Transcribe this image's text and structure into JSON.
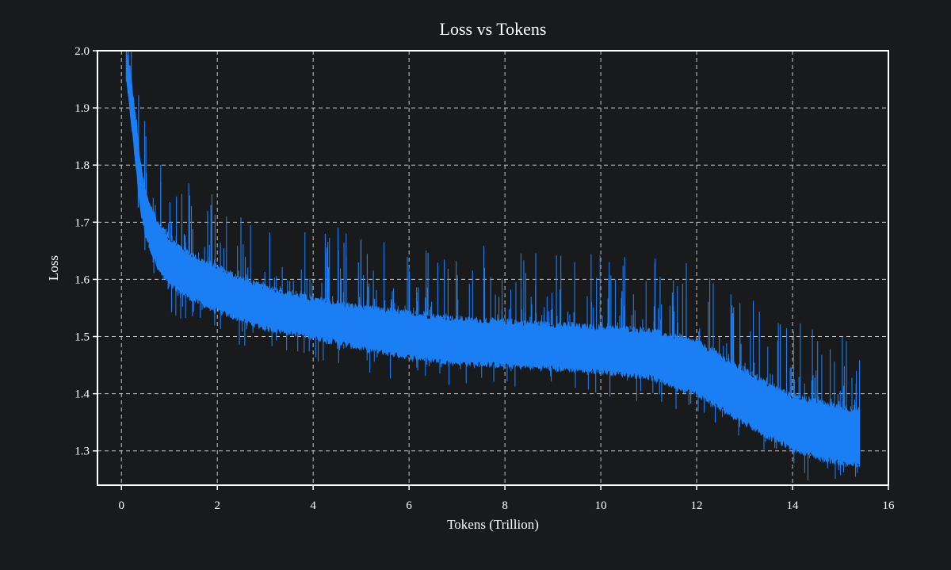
{
  "chart_data": {
    "type": "area",
    "title": "Loss vs Tokens",
    "xlabel": "Tokens (Trillion)",
    "ylabel": "Loss",
    "xlim": [
      -0.5,
      16
    ],
    "ylim": [
      1.24,
      2.0
    ],
    "xticks": [
      0,
      2,
      4,
      6,
      8,
      10,
      12,
      14,
      16
    ],
    "yticks": [
      1.3,
      1.4,
      1.5,
      1.6,
      1.7,
      1.8,
      1.9,
      2.0
    ],
    "xtick_labels": [
      "0",
      "2",
      "4",
      "6",
      "8",
      "10",
      "12",
      "14",
      "16"
    ],
    "ytick_labels": [
      "1.3",
      "1.4",
      "1.5",
      "1.6",
      "1.7",
      "1.8",
      "1.9",
      "2.0"
    ],
    "grid": true,
    "series": [
      {
        "name": "Loss",
        "color": "#1a7ff5",
        "x": [
          0.1,
          0.2,
          0.3,
          0.4,
          0.5,
          0.75,
          1.0,
          1.5,
          2.0,
          2.5,
          3.0,
          4.0,
          5.0,
          6.0,
          7.0,
          8.0,
          9.0,
          10.0,
          10.5,
          11.0,
          11.5,
          12.0,
          12.5,
          13.0,
          13.5,
          14.0,
          14.5,
          15.0,
          15.4
        ],
        "upper": [
          2.0,
          1.95,
          1.88,
          1.8,
          1.75,
          1.7,
          1.67,
          1.64,
          1.62,
          1.6,
          1.585,
          1.565,
          1.55,
          1.54,
          1.53,
          1.525,
          1.52,
          1.515,
          1.513,
          1.51,
          1.5,
          1.49,
          1.465,
          1.44,
          1.415,
          1.395,
          1.385,
          1.375,
          1.37
        ],
        "lower": [
          1.95,
          1.88,
          1.8,
          1.72,
          1.68,
          1.62,
          1.59,
          1.565,
          1.545,
          1.53,
          1.515,
          1.5,
          1.48,
          1.465,
          1.455,
          1.45,
          1.445,
          1.44,
          1.435,
          1.43,
          1.415,
          1.4,
          1.375,
          1.35,
          1.325,
          1.305,
          1.29,
          1.28,
          1.275
        ]
      }
    ]
  }
}
